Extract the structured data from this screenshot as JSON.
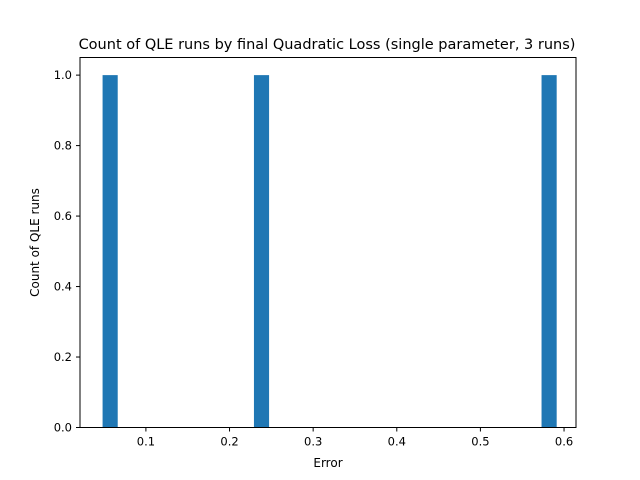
{
  "chart_data": {
    "type": "bar",
    "title": "Count of QLE runs by final Quadratic Loss (single parameter, 3 runs)",
    "xlabel": "Error",
    "ylabel": "Count of QLE runs",
    "xlim": [
      0.0212,
      0.6143
    ],
    "ylim": [
      0.0,
      1.05
    ],
    "xticks": [
      0.1,
      0.2,
      0.3,
      0.4,
      0.5,
      0.6
    ],
    "xtick_labels": [
      "0.1",
      "0.2",
      "0.3",
      "0.4",
      "0.5",
      "0.6"
    ],
    "yticks": [
      0.0,
      0.2,
      0.4,
      0.6,
      0.8,
      1.0
    ],
    "ytick_labels": [
      "0.0",
      "0.2",
      "0.4",
      "0.6",
      "0.8",
      "1.0"
    ],
    "bars": [
      {
        "x0": 0.0482,
        "x1": 0.0663,
        "value": 1.0
      },
      {
        "x0": 0.2292,
        "x1": 0.2473,
        "value": 1.0
      },
      {
        "x0": 0.5731,
        "x1": 0.5912,
        "value": 1.0
      }
    ],
    "bar_color": "#1f77b4",
    "grid": false,
    "legend": "none"
  }
}
